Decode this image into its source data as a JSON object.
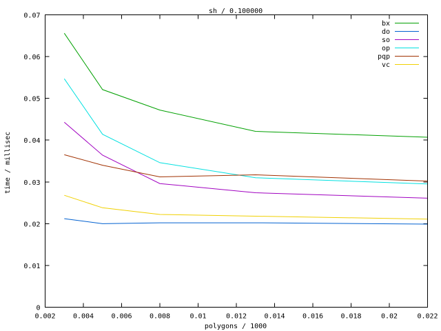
{
  "chart_data": {
    "type": "line",
    "title": "sh / 0.100000",
    "xlabel": "polygons / 1000",
    "ylabel": "time / millisec",
    "xlim": [
      0.002,
      0.022
    ],
    "ylim": [
      0,
      0.07
    ],
    "xticks": [
      0.002,
      0.004,
      0.006,
      0.008,
      0.01,
      0.012,
      0.014,
      0.016,
      0.018,
      0.02,
      0.022
    ],
    "xtick_labels": [
      "0.002",
      "0.004",
      "0.006",
      "0.008",
      "0.01",
      "0.012",
      "0.014",
      "0.016",
      "0.018",
      "0.02",
      "0.022"
    ],
    "yticks": [
      0,
      0.01,
      0.02,
      0.03,
      0.04,
      0.05,
      0.06,
      0.07
    ],
    "ytick_labels": [
      "0",
      "0.01",
      "0.02",
      "0.03",
      "0.04",
      "0.05",
      "0.06",
      "0.07"
    ],
    "grid": false,
    "legend_position": "top-right",
    "x": [
      0.003,
      0.005,
      0.008,
      0.013,
      0.022
    ],
    "series": [
      {
        "name": "bx",
        "color": "#00a000",
        "values": [
          0.0656,
          0.0521,
          0.0472,
          0.0421,
          0.0407
        ]
      },
      {
        "name": "do",
        "color": "#0060d0",
        "values": [
          0.0212,
          0.02,
          0.0202,
          0.0202,
          0.0199
        ]
      },
      {
        "name": "so",
        "color": "#a000c0",
        "values": [
          0.0443,
          0.0364,
          0.0296,
          0.0274,
          0.0261
        ]
      },
      {
        "name": "op",
        "color": "#00e0e0",
        "values": [
          0.0547,
          0.0414,
          0.0346,
          0.031,
          0.0295
        ]
      },
      {
        "name": "pqp",
        "color": "#a03000",
        "values": [
          0.0365,
          0.034,
          0.0312,
          0.0317,
          0.0302
        ]
      },
      {
        "name": "vc",
        "color": "#f0d000",
        "values": [
          0.0268,
          0.0238,
          0.0222,
          0.0218,
          0.0211
        ]
      }
    ]
  }
}
